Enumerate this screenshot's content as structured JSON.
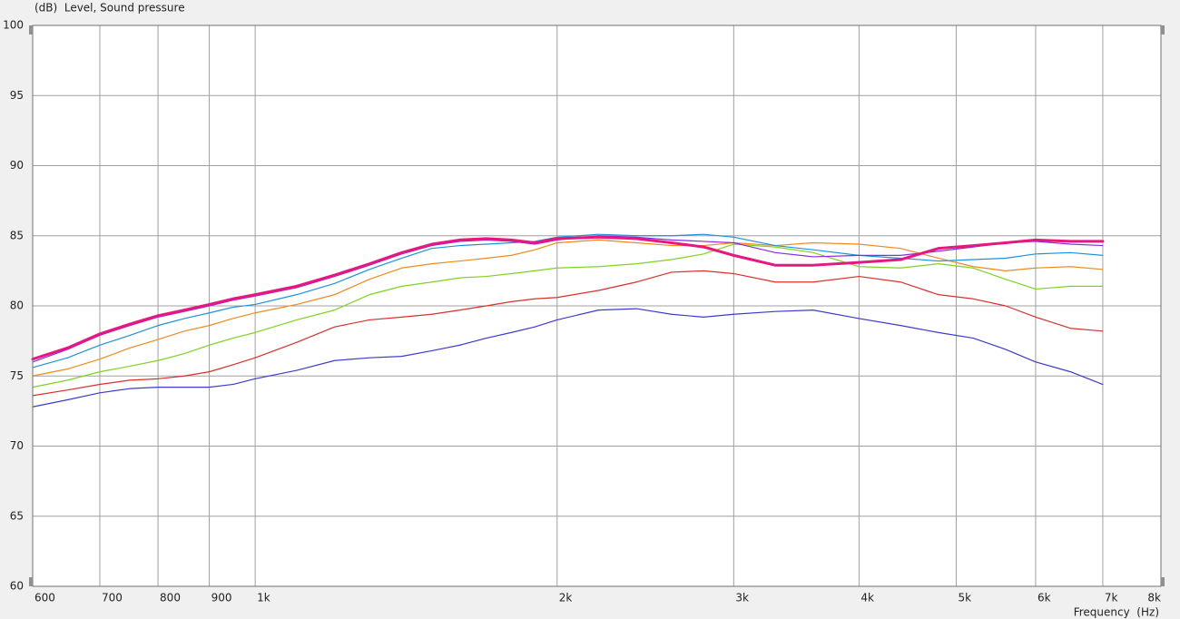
{
  "chart_data": {
    "type": "line",
    "ylabel": "(dB)  Level, Sound pressure",
    "xlabel": "Frequency  (Hz)",
    "log_x": true,
    "grid": true,
    "xlim": [
      600,
      8000
    ],
    "ylim": [
      60,
      100
    ],
    "xticks": [
      600,
      700,
      800,
      900,
      {
        "value": 1000,
        "label": "1k"
      },
      {
        "value": 2000,
        "label": "2k"
      },
      {
        "value": 3000,
        "label": "3k"
      },
      {
        "value": 4000,
        "label": "4k"
      },
      {
        "value": 5000,
        "label": "5k"
      },
      {
        "value": 6000,
        "label": "6k"
      },
      {
        "value": 7000,
        "label": "7k"
      },
      {
        "value": 8000,
        "label": "8k"
      }
    ],
    "yticks": [
      60,
      65,
      70,
      75,
      80,
      85,
      90,
      95,
      100
    ],
    "x": [
      600,
      650,
      700,
      750,
      800,
      850,
      900,
      950,
      1000,
      1100,
      1200,
      1300,
      1400,
      1500,
      1600,
      1700,
      1800,
      1900,
      2000,
      2200,
      2400,
      2600,
      2800,
      3000,
      3300,
      3600,
      4000,
      4400,
      4800,
      5200,
      5600,
      6000,
      6500,
      7000
    ],
    "series": [
      {
        "color": "#3b3bcf",
        "width": 1.2,
        "values": [
          72.8,
          73.3,
          73.8,
          74.1,
          74.2,
          74.2,
          74.2,
          74.4,
          74.8,
          75.4,
          76.1,
          76.3,
          76.4,
          76.8,
          77.2,
          77.7,
          78.1,
          78.5,
          79.0,
          79.7,
          79.8,
          79.4,
          79.2,
          79.4,
          79.6,
          79.7,
          79.1,
          78.6,
          78.1,
          77.7,
          76.9,
          76.0,
          75.3,
          74.4
        ]
      },
      {
        "color": "#d9302a",
        "width": 1.2,
        "values": [
          73.6,
          74.0,
          74.4,
          74.7,
          74.8,
          75.0,
          75.3,
          75.8,
          76.3,
          77.4,
          78.5,
          79.0,
          79.2,
          79.4,
          79.7,
          80.0,
          80.3,
          80.5,
          80.6,
          81.1,
          81.7,
          82.4,
          82.5,
          82.3,
          81.7,
          81.7,
          82.1,
          81.7,
          80.8,
          80.5,
          80.0,
          79.2,
          78.4,
          78.2
        ]
      },
      {
        "color": "#7ed321",
        "width": 1.2,
        "values": [
          74.2,
          74.7,
          75.3,
          75.7,
          76.1,
          76.6,
          77.2,
          77.7,
          78.1,
          79.0,
          79.7,
          80.8,
          81.4,
          81.7,
          82.0,
          82.1,
          82.3,
          82.5,
          82.7,
          82.8,
          83.0,
          83.3,
          83.7,
          84.4,
          84.2,
          83.8,
          82.8,
          82.7,
          83.0,
          82.7,
          81.9,
          81.2,
          81.4,
          81.4
        ]
      },
      {
        "color": "#f08a1c",
        "width": 1.2,
        "values": [
          75.0,
          75.5,
          76.2,
          77.0,
          77.6,
          78.2,
          78.6,
          79.1,
          79.5,
          80.1,
          80.8,
          81.9,
          82.7,
          83.0,
          83.2,
          83.4,
          83.6,
          84.0,
          84.5,
          84.7,
          84.5,
          84.3,
          84.3,
          84.5,
          84.3,
          84.5,
          84.4,
          84.1,
          83.4,
          82.8,
          82.5,
          82.7,
          82.8,
          82.6
        ]
      },
      {
        "color": "#1e90e0",
        "width": 1.2,
        "values": [
          75.6,
          76.3,
          77.2,
          77.9,
          78.6,
          79.1,
          79.5,
          79.9,
          80.1,
          80.8,
          81.6,
          82.6,
          83.4,
          84.1,
          84.3,
          84.4,
          84.5,
          84.6,
          84.9,
          85.1,
          85.0,
          85.0,
          85.1,
          84.9,
          84.3,
          84.0,
          83.6,
          83.4,
          83.2,
          83.3,
          83.4,
          83.7,
          83.8,
          83.6
        ]
      },
      {
        "color": "#8a2be2",
        "width": 1.2,
        "values": [
          76.0,
          76.9,
          77.9,
          78.6,
          79.2,
          79.6,
          80.0,
          80.4,
          80.7,
          81.3,
          82.1,
          82.9,
          83.7,
          84.3,
          84.6,
          84.7,
          84.6,
          84.4,
          84.7,
          85.0,
          84.9,
          84.7,
          84.6,
          84.5,
          83.8,
          83.5,
          83.6,
          83.6,
          83.9,
          84.2,
          84.5,
          84.6,
          84.4,
          84.3
        ]
      },
      {
        "color": "#e8177f",
        "width": 3,
        "values": [
          76.2,
          77.0,
          78.0,
          78.7,
          79.3,
          79.7,
          80.1,
          80.5,
          80.8,
          81.4,
          82.2,
          83.0,
          83.8,
          84.4,
          84.7,
          84.8,
          84.7,
          84.5,
          84.8,
          84.9,
          84.8,
          84.5,
          84.2,
          83.6,
          82.9,
          82.9,
          83.1,
          83.3,
          84.1,
          84.3,
          84.5,
          84.7,
          84.6,
          84.6
        ]
      }
    ]
  }
}
